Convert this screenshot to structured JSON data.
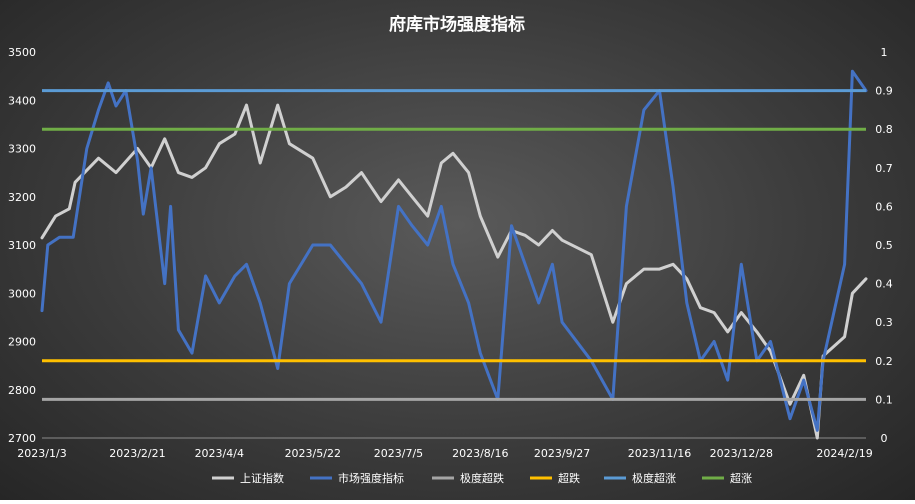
{
  "chart_data": {
    "type": "line",
    "title": "府库市场强度指标",
    "x_tick_labels": [
      "2023/1/3",
      "2023/2/21",
      "2023/4/4",
      "2023/5/22",
      "2023/7/5",
      "2023/8/16",
      "2023/9/27",
      "2023/11/16",
      "2023/12/28",
      "2024/2/19"
    ],
    "x_range": [
      "2023/1/3",
      "2024/3/1"
    ],
    "ylim_left": [
      2700,
      3500
    ],
    "ylim_right": [
      0,
      1
    ],
    "yticks_left": [
      "3500",
      "3400",
      "3300",
      "3200",
      "3100",
      "3000",
      "2900",
      "2800",
      "2700"
    ],
    "yticks_right": [
      "1",
      "0.9",
      "0.8",
      "0.7",
      "0.6",
      "0.5",
      "0.4",
      "0.3",
      "0.2",
      "0.1",
      "0"
    ],
    "legend_position": "bottom",
    "grid": false,
    "series": [
      {
        "name": "上证指数",
        "axis": "left",
        "color": "#d0d0d0",
        "points": [
          [
            "2023/1/3",
            3115
          ],
          [
            "2023/1/10",
            3160
          ],
          [
            "2023/1/17",
            3175
          ],
          [
            "2023/1/20",
            3230
          ],
          [
            "2023/2/1",
            3280
          ],
          [
            "2023/2/10",
            3250
          ],
          [
            "2023/2/21",
            3300
          ],
          [
            "2023/2/28",
            3260
          ],
          [
            "2023/3/7",
            3320
          ],
          [
            "2023/3/14",
            3250
          ],
          [
            "2023/3/21",
            3240
          ],
          [
            "2023/3/28",
            3260
          ],
          [
            "2023/4/4",
            3310
          ],
          [
            "2023/4/12",
            3330
          ],
          [
            "2023/4/18",
            3390
          ],
          [
            "2023/4/25",
            3270
          ],
          [
            "2023/5/4",
            3390
          ],
          [
            "2023/5/10",
            3310
          ],
          [
            "2023/5/22",
            3280
          ],
          [
            "2023/5/31",
            3200
          ],
          [
            "2023/6/8",
            3220
          ],
          [
            "2023/6/16",
            3250
          ],
          [
            "2023/6/26",
            3190
          ],
          [
            "2023/7/5",
            3235
          ],
          [
            "2023/7/12",
            3200
          ],
          [
            "2023/7/20",
            3160
          ],
          [
            "2023/7/27",
            3270
          ],
          [
            "2023/8/2",
            3290
          ],
          [
            "2023/8/10",
            3250
          ],
          [
            "2023/8/16",
            3160
          ],
          [
            "2023/8/25",
            3075
          ],
          [
            "2023/9/1",
            3130
          ],
          [
            "2023/9/8",
            3120
          ],
          [
            "2023/9/15",
            3100
          ],
          [
            "2023/9/22",
            3130
          ],
          [
            "2023/9/27",
            3110
          ],
          [
            "2023/10/12",
            3080
          ],
          [
            "2023/10/23",
            2940
          ],
          [
            "2023/10/30",
            3020
          ],
          [
            "2023/11/8",
            3050
          ],
          [
            "2023/11/16",
            3050
          ],
          [
            "2023/11/23",
            3060
          ],
          [
            "2023/11/30",
            3030
          ],
          [
            "2023/12/7",
            2970
          ],
          [
            "2023/12/14",
            2960
          ],
          [
            "2023/12/21",
            2920
          ],
          [
            "2023/12/28",
            2960
          ],
          [
            "2024/1/5",
            2920
          ],
          [
            "2024/1/12",
            2880
          ],
          [
            "2024/1/22",
            2770
          ],
          [
            "2024/1/29",
            2830
          ],
          [
            "2024/2/5",
            2700
          ],
          [
            "2024/2/8",
            2870
          ],
          [
            "2024/2/19",
            2910
          ],
          [
            "2024/2/23",
            3000
          ],
          [
            "2024/3/1",
            3030
          ]
        ]
      },
      {
        "name": "市场强度指标",
        "axis": "right",
        "color": "#4472c4",
        "points": [
          [
            "2023/1/3",
            0.33
          ],
          [
            "2023/1/6",
            0.5
          ],
          [
            "2023/1/12",
            0.52
          ],
          [
            "2023/1/19",
            0.52
          ],
          [
            "2023/1/26",
            0.75
          ],
          [
            "2023/2/1",
            0.85
          ],
          [
            "2023/2/6",
            0.92
          ],
          [
            "2023/2/10",
            0.86
          ],
          [
            "2023/2/15",
            0.9
          ],
          [
            "2023/2/21",
            0.72
          ],
          [
            "2023/2/24",
            0.58
          ],
          [
            "2023/2/28",
            0.7
          ],
          [
            "2023/3/7",
            0.4
          ],
          [
            "2023/3/10",
            0.6
          ],
          [
            "2023/3/14",
            0.28
          ],
          [
            "2023/3/21",
            0.22
          ],
          [
            "2023/3/28",
            0.42
          ],
          [
            "2023/4/4",
            0.35
          ],
          [
            "2023/4/12",
            0.42
          ],
          [
            "2023/4/18",
            0.45
          ],
          [
            "2023/4/25",
            0.35
          ],
          [
            "2023/5/4",
            0.18
          ],
          [
            "2023/5/10",
            0.4
          ],
          [
            "2023/5/22",
            0.5
          ],
          [
            "2023/5/31",
            0.5
          ],
          [
            "2023/6/8",
            0.45
          ],
          [
            "2023/6/16",
            0.4
          ],
          [
            "2023/6/26",
            0.3
          ],
          [
            "2023/7/5",
            0.6
          ],
          [
            "2023/7/12",
            0.55
          ],
          [
            "2023/7/20",
            0.5
          ],
          [
            "2023/7/27",
            0.6
          ],
          [
            "2023/8/2",
            0.45
          ],
          [
            "2023/8/10",
            0.35
          ],
          [
            "2023/8/16",
            0.22
          ],
          [
            "2023/8/25",
            0.1
          ],
          [
            "2023/9/1",
            0.55
          ],
          [
            "2023/9/8",
            0.45
          ],
          [
            "2023/9/15",
            0.35
          ],
          [
            "2023/9/22",
            0.45
          ],
          [
            "2023/9/27",
            0.3
          ],
          [
            "2023/10/12",
            0.2
          ],
          [
            "2023/10/23",
            0.1
          ],
          [
            "2023/10/30",
            0.6
          ],
          [
            "2023/11/8",
            0.85
          ],
          [
            "2023/11/16",
            0.9
          ],
          [
            "2023/11/23",
            0.65
          ],
          [
            "2023/11/30",
            0.35
          ],
          [
            "2023/12/7",
            0.2
          ],
          [
            "2023/12/14",
            0.25
          ],
          [
            "2023/12/21",
            0.15
          ],
          [
            "2023/12/28",
            0.45
          ],
          [
            "2024/1/5",
            0.2
          ],
          [
            "2024/1/12",
            0.25
          ],
          [
            "2024/1/22",
            0.05
          ],
          [
            "2024/1/29",
            0.15
          ],
          [
            "2024/2/5",
            0.02
          ],
          [
            "2024/2/8",
            0.2
          ],
          [
            "2024/2/19",
            0.45
          ],
          [
            "2024/2/23",
            0.95
          ],
          [
            "2024/3/1",
            0.9
          ]
        ]
      },
      {
        "name": "极度超跌",
        "axis": "right",
        "color": "#a5a5a5",
        "value": 0.1
      },
      {
        "name": "超跌",
        "axis": "right",
        "color": "#ffc000",
        "value": 0.2
      },
      {
        "name": "极度超涨",
        "axis": "right",
        "color": "#5b9bd5",
        "value": 0.9
      },
      {
        "name": "超涨",
        "axis": "right",
        "color": "#70ad47",
        "value": 0.8
      }
    ]
  }
}
